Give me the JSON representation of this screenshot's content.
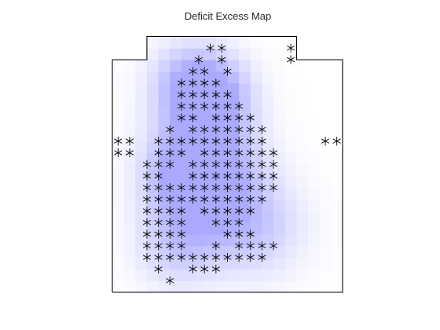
{
  "chart_data": {
    "type": "heatmap",
    "title": "Deficit Excess Map",
    "xlabel": "",
    "ylabel": "",
    "axes_visible": false,
    "grid": false,
    "legend": "none",
    "colormap": {
      "low": "#ffffff",
      "high": "#a9a9ff"
    },
    "marker": {
      "symbol": "asterisk",
      "color": "#000000"
    },
    "outline_color": "#000000",
    "region": {
      "x_range": [
        0,
        20
      ],
      "y_range": [
        0,
        22
      ],
      "outline": [
        [
          0,
          0
        ],
        [
          20,
          0
        ],
        [
          20,
          20
        ],
        [
          16,
          20
        ],
        [
          16,
          22
        ],
        [
          3,
          22
        ],
        [
          3,
          20
        ],
        [
          0,
          20
        ],
        [
          0,
          0
        ]
      ]
    },
    "intensity_peaks": [
      {
        "x": 6.8,
        "y": 18.0,
        "amplitude": 0.85,
        "spread": 2.4
      },
      {
        "x": 9.2,
        "y": 17.0,
        "amplitude": 0.65,
        "spread": 2.3
      },
      {
        "x": 8.0,
        "y": 12.6,
        "amplitude": 0.9,
        "spread": 2.9
      },
      {
        "x": 6.3,
        "y": 9.5,
        "amplitude": 0.7,
        "spread": 2.6
      },
      {
        "x": 9.0,
        "y": 8.0,
        "amplitude": 0.6,
        "spread": 3.2
      },
      {
        "x": 12.5,
        "y": 5.5,
        "amplitude": 0.5,
        "spread": 3.0
      },
      {
        "x": 5.6,
        "y": 3.8,
        "amplitude": 0.5,
        "spread": 2.5
      }
    ],
    "deficit_points": [
      [
        8.5,
        21.0
      ],
      [
        9.5,
        21.0
      ],
      [
        15.5,
        21.0
      ],
      [
        15.5,
        20.0
      ],
      [
        7.5,
        20.0
      ],
      [
        9.5,
        20.0
      ],
      [
        7,
        19
      ],
      [
        8,
        19
      ],
      [
        10,
        19
      ],
      [
        6,
        18
      ],
      [
        7,
        18
      ],
      [
        8,
        18
      ],
      [
        9,
        18
      ],
      [
        6,
        17
      ],
      [
        7,
        17
      ],
      [
        8,
        17
      ],
      [
        9,
        17
      ],
      [
        10,
        17
      ],
      [
        6,
        16
      ],
      [
        7,
        16
      ],
      [
        8,
        16
      ],
      [
        9,
        16
      ],
      [
        10,
        16
      ],
      [
        11,
        16
      ],
      [
        6,
        15
      ],
      [
        7,
        15
      ],
      [
        9,
        15
      ],
      [
        10,
        15
      ],
      [
        11,
        15
      ],
      [
        12,
        15
      ],
      [
        5,
        14
      ],
      [
        7,
        14
      ],
      [
        8,
        14
      ],
      [
        9,
        14
      ],
      [
        10,
        14
      ],
      [
        11,
        14
      ],
      [
        12,
        14
      ],
      [
        13,
        14
      ],
      [
        0.5,
        13.0
      ],
      [
        1.5,
        13.0
      ],
      [
        4,
        13
      ],
      [
        5,
        13
      ],
      [
        6,
        13
      ],
      [
        7,
        13
      ],
      [
        8,
        13
      ],
      [
        9,
        13
      ],
      [
        10,
        13
      ],
      [
        11,
        13
      ],
      [
        12,
        13
      ],
      [
        13,
        13
      ],
      [
        18.5,
        13.0
      ],
      [
        19.5,
        13.0
      ],
      [
        0.5,
        12.0
      ],
      [
        1.5,
        12.0
      ],
      [
        4,
        12
      ],
      [
        5,
        12
      ],
      [
        6,
        12
      ],
      [
        8,
        12
      ],
      [
        9,
        12
      ],
      [
        10,
        12
      ],
      [
        11,
        12
      ],
      [
        12,
        12
      ],
      [
        13,
        12
      ],
      [
        14,
        12
      ],
      [
        3,
        11
      ],
      [
        4,
        11
      ],
      [
        5,
        11
      ],
      [
        7,
        11
      ],
      [
        8,
        11
      ],
      [
        9,
        11
      ],
      [
        10,
        11
      ],
      [
        11,
        11
      ],
      [
        12,
        11
      ],
      [
        13,
        11
      ],
      [
        14,
        11
      ],
      [
        3,
        10
      ],
      [
        4,
        10
      ],
      [
        7,
        10
      ],
      [
        8,
        10
      ],
      [
        9,
        10
      ],
      [
        10,
        10
      ],
      [
        11,
        10
      ],
      [
        12,
        10
      ],
      [
        13,
        10
      ],
      [
        14,
        10
      ],
      [
        3,
        9
      ],
      [
        4,
        9
      ],
      [
        5,
        9
      ],
      [
        6,
        9
      ],
      [
        7,
        9
      ],
      [
        8,
        9
      ],
      [
        9,
        9
      ],
      [
        10,
        9
      ],
      [
        11,
        9
      ],
      [
        12,
        9
      ],
      [
        13,
        9
      ],
      [
        14,
        9
      ],
      [
        3,
        8
      ],
      [
        4,
        8
      ],
      [
        5,
        8
      ],
      [
        6,
        8
      ],
      [
        7,
        8
      ],
      [
        8,
        8
      ],
      [
        9,
        8
      ],
      [
        10,
        8
      ],
      [
        11,
        8
      ],
      [
        12,
        8
      ],
      [
        13,
        8
      ],
      [
        3,
        7
      ],
      [
        4,
        7
      ],
      [
        5,
        7
      ],
      [
        6,
        7
      ],
      [
        8,
        7
      ],
      [
        9,
        7
      ],
      [
        10,
        7
      ],
      [
        11,
        7
      ],
      [
        12,
        7
      ],
      [
        3,
        6
      ],
      [
        4,
        6
      ],
      [
        5,
        6
      ],
      [
        6,
        6
      ],
      [
        9,
        6
      ],
      [
        10,
        6
      ],
      [
        11,
        6
      ],
      [
        3,
        5
      ],
      [
        4,
        5
      ],
      [
        5,
        5
      ],
      [
        6,
        5
      ],
      [
        10,
        5
      ],
      [
        11,
        5
      ],
      [
        12,
        5
      ],
      [
        3,
        4
      ],
      [
        4,
        4
      ],
      [
        5,
        4
      ],
      [
        6,
        4
      ],
      [
        9,
        4
      ],
      [
        11,
        4
      ],
      [
        12,
        4
      ],
      [
        13,
        4
      ],
      [
        14,
        4
      ],
      [
        3,
        3
      ],
      [
        4,
        3
      ],
      [
        5,
        3
      ],
      [
        6,
        3
      ],
      [
        7,
        3
      ],
      [
        8,
        3
      ],
      [
        9,
        3
      ],
      [
        10,
        3
      ],
      [
        11,
        3
      ],
      [
        12,
        3
      ],
      [
        13,
        3
      ],
      [
        4,
        2
      ],
      [
        7,
        2
      ],
      [
        8,
        2
      ],
      [
        9,
        2
      ],
      [
        5,
        1
      ]
    ]
  }
}
